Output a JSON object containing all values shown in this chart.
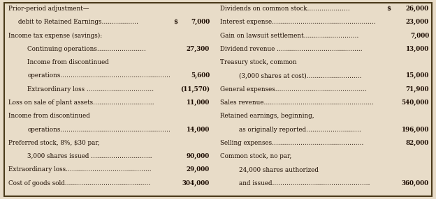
{
  "bg_color": "#e8dcc8",
  "border_color": "#4a3a1a",
  "text_color": "#1a0a00",
  "left_rows": [
    {
      "label": "Prior-period adjustment—",
      "indent": 0,
      "dollar": "",
      "value": ""
    },
    {
      "label": "debit to Retained Earnings………………",
      "indent": 1,
      "dollar": "$",
      "value": "7,000"
    },
    {
      "label": "Income tax expense (savings):",
      "indent": 0,
      "dollar": "",
      "value": ""
    },
    {
      "label": "Continuing operations……………………",
      "indent": 2,
      "dollar": "",
      "value": "27,300"
    },
    {
      "label": "Income from discontinued",
      "indent": 2,
      "dollar": "",
      "value": ""
    },
    {
      "label": "operations………………………………………………",
      "indent": 2,
      "dollar": "",
      "value": "5,600"
    },
    {
      "label": "Extraordinary loss ……………………………",
      "indent": 2,
      "dollar": "",
      "value": "(11,570)"
    },
    {
      "label": "Loss on sale of plant assets…………………………",
      "indent": 0,
      "dollar": "",
      "value": "11,000"
    },
    {
      "label": "Income from discontinued",
      "indent": 0,
      "dollar": "",
      "value": ""
    },
    {
      "label": "operations………………………………………………",
      "indent": 2,
      "dollar": "",
      "value": "14,000"
    },
    {
      "label": "Preferred stock, 8%, $30 par,",
      "indent": 0,
      "dollar": "",
      "value": ""
    },
    {
      "label": "3,000 shares issued …………………………",
      "indent": 2,
      "dollar": "",
      "value": "90,000"
    },
    {
      "label": "Extraordinary loss……………………………………",
      "indent": 0,
      "dollar": "",
      "value": "29,000"
    },
    {
      "label": "Cost of goods sold……………………………………",
      "indent": 0,
      "dollar": "",
      "value": "304,000"
    }
  ],
  "right_rows": [
    {
      "label": "Dividends on common stock…………………",
      "indent": 0,
      "dollar": "$",
      "value": "26,000"
    },
    {
      "label": "Interest expense……………………………………………",
      "indent": 0,
      "dollar": "",
      "value": "23,000"
    },
    {
      "label": "Gain on lawsuit settlement………………………",
      "indent": 0,
      "dollar": "",
      "value": "7,000"
    },
    {
      "label": "Dividend revenue ……………………………………",
      "indent": 0,
      "dollar": "",
      "value": "13,000"
    },
    {
      "label": "Treasury stock, common",
      "indent": 0,
      "dollar": "",
      "value": ""
    },
    {
      "label": "(3,000 shares at cost)………………………",
      "indent": 2,
      "dollar": "",
      "value": "15,000"
    },
    {
      "label": "General expenses………………………………………",
      "indent": 0,
      "dollar": "",
      "value": "71,900"
    },
    {
      "label": "Sales revenue………………………………………………",
      "indent": 0,
      "dollar": "",
      "value": "540,000"
    },
    {
      "label": "Retained earnings, beginning,",
      "indent": 0,
      "dollar": "",
      "value": ""
    },
    {
      "label": "as originally reported………………………",
      "indent": 2,
      "dollar": "",
      "value": "196,000"
    },
    {
      "label": "Selling expenses………………………………………",
      "indent": 0,
      "dollar": "",
      "value": "82,000"
    },
    {
      "label": "Common stock, no par,",
      "indent": 0,
      "dollar": "",
      "value": ""
    },
    {
      "label": "24,000 shares authorized",
      "indent": 2,
      "dollar": "",
      "value": ""
    },
    {
      "label": "and issued…………………………………………",
      "indent": 2,
      "dollar": "",
      "value": "360,000"
    }
  ],
  "font_size": 6.3,
  "indent_size": 0.022
}
